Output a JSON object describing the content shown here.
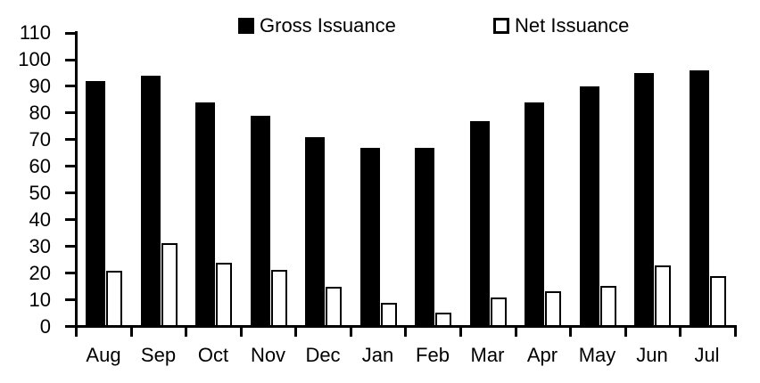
{
  "chart_data": {
    "type": "bar",
    "title": "",
    "xlabel": "",
    "ylabel": "",
    "categories": [
      "Aug",
      "Sep",
      "Oct",
      "Nov",
      "Dec",
      "Jan",
      "Feb",
      "Mar",
      "Apr",
      "May",
      "Jun",
      "Jul"
    ],
    "series": [
      {
        "name": "Gross Issuance",
        "swatch": "filled-black-square",
        "color": "#000000",
        "values": [
          92,
          94,
          84,
          79,
          71,
          67,
          67,
          77,
          84,
          90,
          95,
          96
        ]
      },
      {
        "name": "Net Issuance",
        "swatch": "outlined-white-square",
        "color": "#ffffff",
        "values": [
          21,
          31.5,
          24,
          21.5,
          15,
          9,
          5.5,
          11,
          13.5,
          15.5,
          23,
          19
        ]
      }
    ],
    "ylim": [
      0,
      110
    ],
    "yticks": [
      0,
      10,
      20,
      30,
      40,
      50,
      60,
      70,
      80,
      90,
      100,
      110
    ],
    "grid": false,
    "legend_position": "top",
    "axis_color": "#000000",
    "background_color": "#ffffff"
  }
}
